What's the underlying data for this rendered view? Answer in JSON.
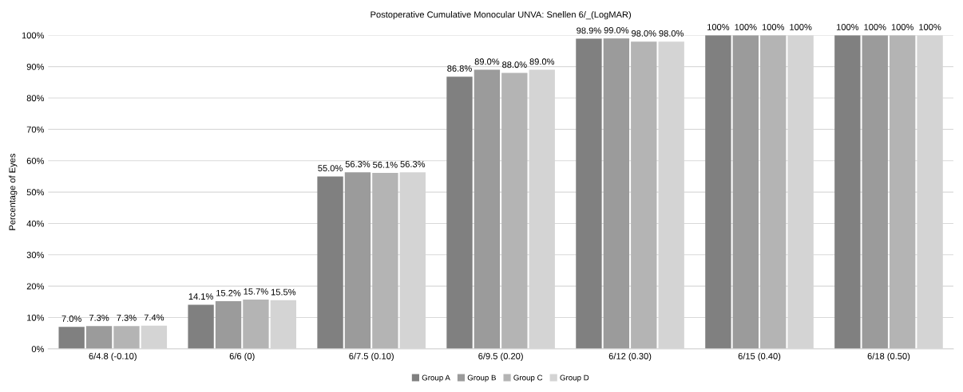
{
  "chart_data": {
    "type": "bar",
    "title": "Postoperative Cumulative Monocular UNVA: Snellen 6/_(LogMAR)",
    "ylabel": "Percentage of Eyes",
    "categories": [
      "6/4.8 (-0.10)",
      "6/6 (0)",
      "6/7.5 (0.10)",
      "6/9.5 (0.20)",
      "6/12 (0.30)",
      "6/15 (0.40)",
      "6/18 (0.50)"
    ],
    "series": [
      {
        "name": "Group A",
        "color": "#808080",
        "values": [
          7.0,
          14.1,
          55.0,
          86.8,
          98.9,
          100,
          100
        ],
        "value_labels": [
          "7.0%",
          "14.1%",
          "55.0%",
          "86.8%",
          "98.9%",
          "100%",
          "100%"
        ]
      },
      {
        "name": "Group B",
        "color": "#9b9b9b",
        "values": [
          7.3,
          15.2,
          56.3,
          89.0,
          99.0,
          100,
          100
        ],
        "value_labels": [
          "7.3%",
          "15.2%",
          "56.3%",
          "89.0%",
          "99.0%",
          "100%",
          "100%"
        ]
      },
      {
        "name": "Group C",
        "color": "#b4b4b4",
        "values": [
          7.3,
          15.7,
          56.1,
          88.0,
          98.0,
          100,
          100
        ],
        "value_labels": [
          "7.3%",
          "15.7%",
          "56.1%",
          "88.0%",
          "98.0%",
          "100%",
          "100%"
        ]
      },
      {
        "name": "Group D",
        "color": "#d4d4d4",
        "values": [
          7.4,
          15.5,
          56.3,
          89.0,
          98.0,
          100,
          100
        ],
        "value_labels": [
          "7.4%",
          "15.5%",
          "56.3%",
          "89.0%",
          "98.0%",
          "100%",
          "100%"
        ]
      }
    ],
    "ylim": [
      0,
      100
    ],
    "yticks": [
      {
        "value": 0,
        "label": "0%"
      },
      {
        "value": 10,
        "label": "10%"
      },
      {
        "value": 20,
        "label": "20%"
      },
      {
        "value": 30,
        "label": "30%"
      },
      {
        "value": 40,
        "label": "40%"
      },
      {
        "value": 50,
        "label": "50%"
      },
      {
        "value": 60,
        "label": "60%"
      },
      {
        "value": 70,
        "label": "70%"
      },
      {
        "value": 80,
        "label": "80%"
      },
      {
        "value": 90,
        "label": "90%"
      },
      {
        "value": 100,
        "label": "100%"
      }
    ],
    "grid": "y",
    "legend": "bottom"
  }
}
